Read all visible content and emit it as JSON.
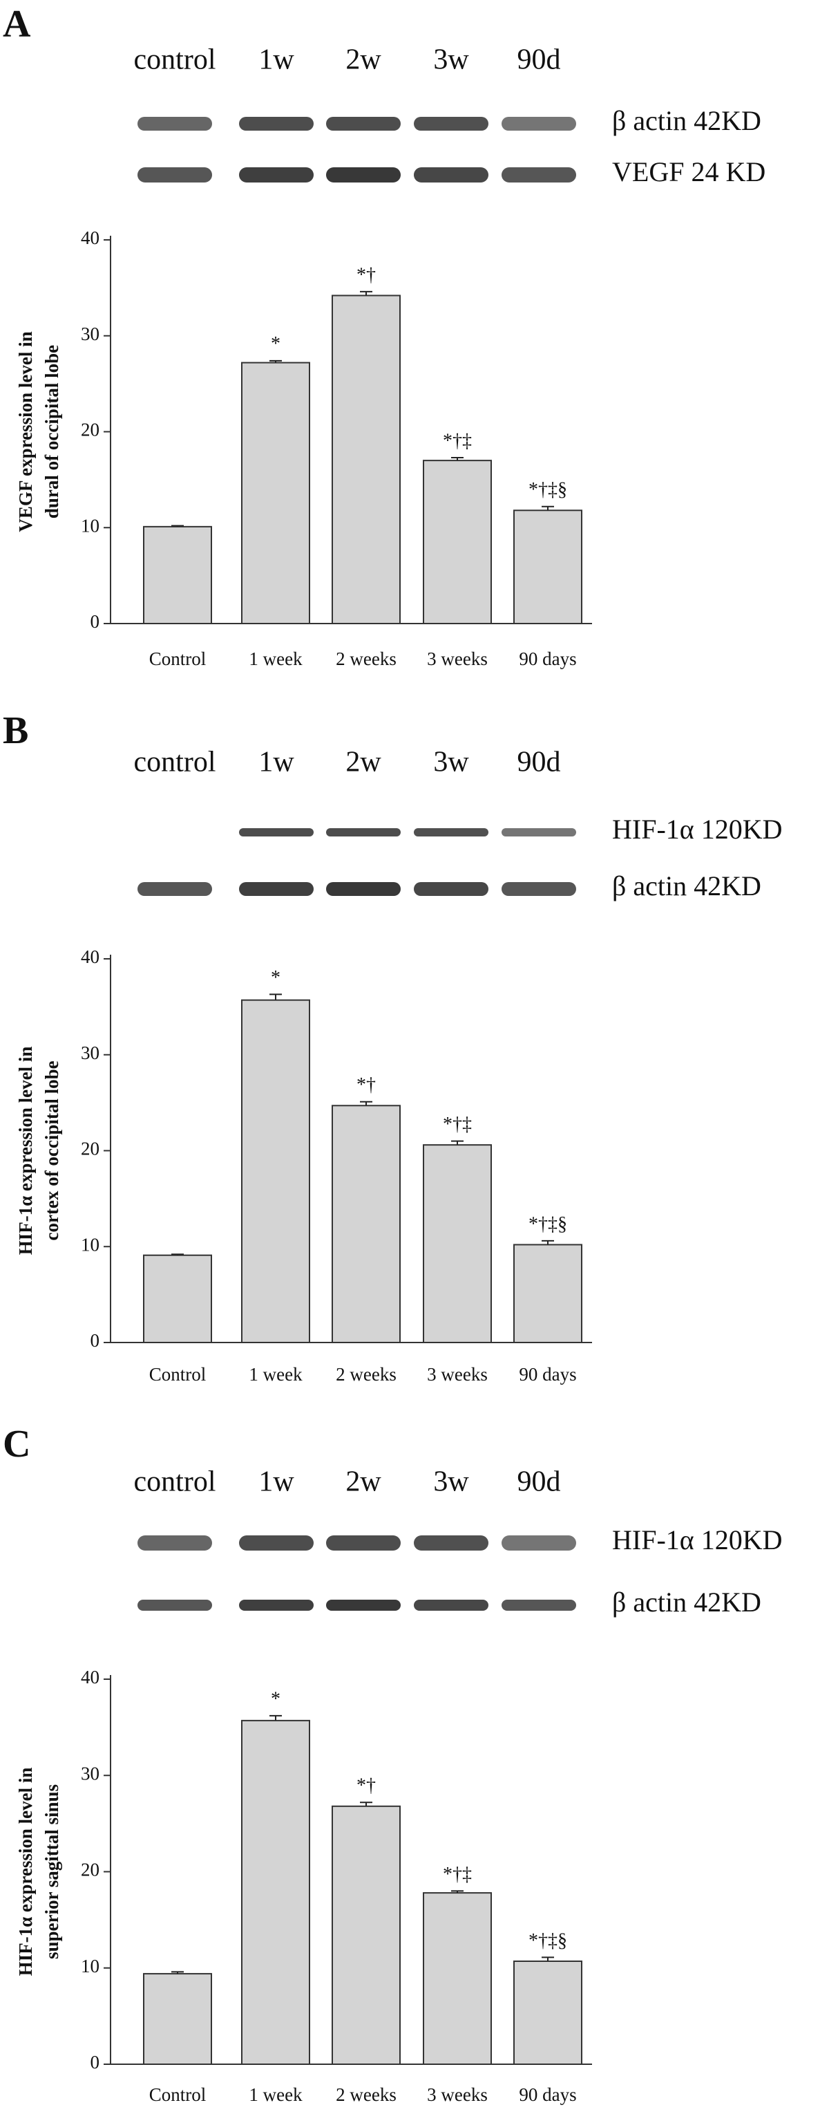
{
  "chart_data": [
    {
      "type": "bar",
      "panel_label": "A",
      "lanes": [
        "control",
        "1w",
        "2w",
        "3w",
        "90d"
      ],
      "bands": [
        "β actin 42KD",
        "VEGF 24 KD"
      ],
      "ylabel": [
        "VEGF expression level in",
        "dural of occipital lobe"
      ],
      "categories": [
        "Control",
        "1 week",
        "2 weeks",
        "3 weeks",
        "90 days"
      ],
      "values": [
        10.1,
        27.2,
        34.2,
        17.0,
        11.8
      ],
      "errors": [
        0.1,
        0.2,
        0.4,
        0.3,
        0.4
      ],
      "annotations": [
        null,
        "*",
        "*†",
        "*†‡",
        "*†‡§"
      ],
      "color": "#d4d4d4",
      "ylim": [
        0,
        40
      ],
      "yticks": [
        0,
        10,
        20,
        30,
        40
      ]
    },
    {
      "type": "bar",
      "panel_label": "B",
      "lanes": [
        "control",
        "1w",
        "2w",
        "3w",
        "90d"
      ],
      "bands": [
        "HIF-1α 120KD",
        "β actin 42KD"
      ],
      "ylabel": [
        "HIF-1α expression level  in",
        "cortex of occipital lobe"
      ],
      "categories": [
        "Control",
        "1 week",
        "2 weeks",
        "3 weeks",
        "90 days"
      ],
      "values": [
        9.1,
        35.7,
        24.7,
        20.6,
        10.2
      ],
      "errors": [
        0.1,
        0.6,
        0.4,
        0.4,
        0.4
      ],
      "annotations": [
        null,
        "*",
        "*†",
        "*†‡",
        "*†‡§"
      ],
      "color": "#d4d4d4",
      "ylim": [
        0,
        40
      ],
      "yticks": [
        0,
        10,
        20,
        30,
        40
      ]
    },
    {
      "type": "bar",
      "panel_label": "C",
      "lanes": [
        "control",
        "1w",
        "2w",
        "3w",
        "90d"
      ],
      "bands": [
        "HIF-1α 120KD",
        "β actin 42KD"
      ],
      "ylabel": [
        "HIF-1α expression level  in",
        "superior sagittal sinus"
      ],
      "categories": [
        "Control",
        "1 week",
        "2 weeks",
        "3 weeks",
        "90 days"
      ],
      "values": [
        9.4,
        35.7,
        26.8,
        17.8,
        10.7
      ],
      "errors": [
        0.2,
        0.5,
        0.4,
        0.2,
        0.4
      ],
      "annotations": [
        null,
        "*",
        "*†",
        "*†‡",
        "*†‡§"
      ],
      "color": "#d4d4d4",
      "ylim": [
        0,
        40
      ],
      "yticks": [
        0,
        10,
        20,
        30,
        40
      ]
    }
  ]
}
